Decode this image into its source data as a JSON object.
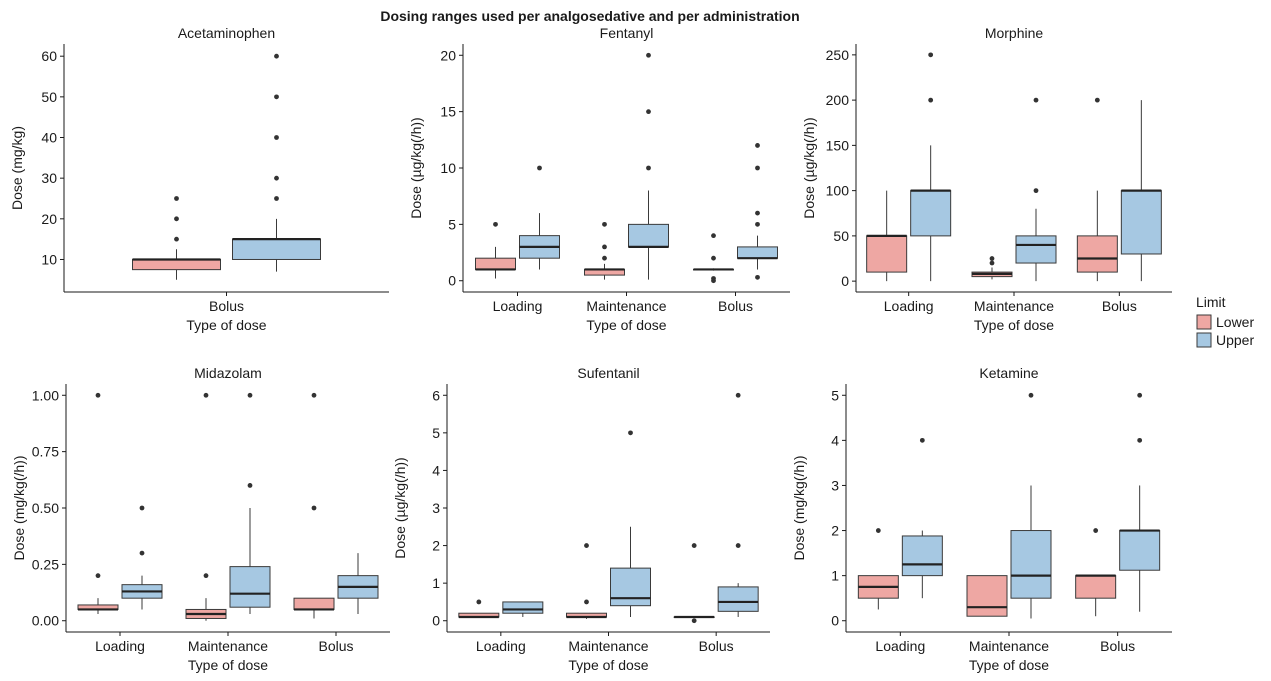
{
  "title": "Dosing ranges used per analgosedative and per administration",
  "legend": {
    "title": "Limit",
    "placement": "right",
    "items": [
      {
        "label": "Lower",
        "color": "#eea7a3"
      },
      {
        "label": "Upper",
        "color": "#a6c8e2"
      }
    ]
  },
  "colors": {
    "lower": "#eea7a3",
    "upper": "#a6c8e2",
    "outline": "#3a3a3a",
    "axis": "#1a1a1a"
  },
  "chart_data": [
    {
      "type": "box",
      "title": "Acetaminophen",
      "xlabel": "Type of dose",
      "ylabel": "Dose (mg/kg)",
      "categories": [
        "Bolus"
      ],
      "ylim": [
        2,
        63
      ],
      "yticks": [
        10,
        20,
        30,
        40,
        50,
        60
      ],
      "ytick_labels": [
        "10",
        "20",
        "30",
        "40",
        "50",
        "60"
      ],
      "series": [
        {
          "name": "Lower",
          "boxes": [
            {
              "lower_whisker": 5,
              "q1": 7.5,
              "median": 10,
              "q3": 10,
              "upper_whisker": 12.5,
              "outliers": [
                15,
                20,
                25
              ]
            }
          ]
        },
        {
          "name": "Upper",
          "boxes": [
            {
              "lower_whisker": 7,
              "q1": 10,
              "median": 15,
              "q3": 15,
              "upper_whisker": 20,
              "outliers": [
                25,
                30,
                40,
                50,
                60
              ]
            }
          ]
        }
      ]
    },
    {
      "type": "box",
      "title": "Fentanyl",
      "xlabel": "Type of dose",
      "ylabel": "Dose (µg/kg(/h))",
      "categories": [
        "Loading",
        "Maintenance",
        "Bolus"
      ],
      "ylim": [
        -1,
        21
      ],
      "yticks": [
        0,
        5,
        10,
        15,
        20
      ],
      "ytick_labels": [
        "0",
        "5",
        "10",
        "15",
        "20"
      ],
      "series": [
        {
          "name": "Lower",
          "boxes": [
            {
              "lower_whisker": 0.2,
              "q1": 1,
              "median": 1,
              "q3": 2,
              "upper_whisker": 3,
              "outliers": [
                5
              ]
            },
            {
              "lower_whisker": 0.1,
              "q1": 0.5,
              "median": 1,
              "q3": 1,
              "upper_whisker": 1.5,
              "outliers": [
                2,
                3,
                5
              ]
            },
            {
              "lower_whisker": 0.9,
              "q1": 1,
              "median": 1,
              "q3": 1,
              "upper_whisker": 1.1,
              "outliers": [
                0,
                0.2,
                2,
                4
              ]
            }
          ]
        },
        {
          "name": "Upper",
          "boxes": [
            {
              "lower_whisker": 1,
              "q1": 2,
              "median": 3,
              "q3": 4,
              "upper_whisker": 6,
              "outliers": [
                10
              ]
            },
            {
              "lower_whisker": 0.1,
              "q1": 3,
              "median": 3,
              "q3": 5,
              "upper_whisker": 8,
              "outliers": [
                10,
                15,
                20
              ]
            },
            {
              "lower_whisker": 1,
              "q1": 2,
              "median": 2,
              "q3": 3,
              "upper_whisker": 4,
              "outliers": [
                0.3,
                5,
                6,
                10,
                12
              ]
            }
          ]
        }
      ]
    },
    {
      "type": "box",
      "title": "Morphine",
      "xlabel": "Type of dose",
      "ylabel": "Dose (µg/kg(/h))",
      "categories": [
        "Loading",
        "Maintenance",
        "Bolus"
      ],
      "ylim": [
        -12,
        262
      ],
      "yticks": [
        0,
        50,
        100,
        150,
        200,
        250
      ],
      "ytick_labels": [
        "0",
        "50",
        "100",
        "150",
        "200",
        "250"
      ],
      "series": [
        {
          "name": "Lower",
          "boxes": [
            {
              "lower_whisker": 0,
              "q1": 10,
              "median": 50,
              "q3": 50,
              "upper_whisker": 100,
              "outliers": []
            },
            {
              "lower_whisker": 2,
              "q1": 5,
              "median": 8,
              "q3": 10,
              "upper_whisker": 15,
              "outliers": [
                20,
                25
              ]
            },
            {
              "lower_whisker": 0,
              "q1": 10,
              "median": 25,
              "q3": 50,
              "upper_whisker": 100,
              "outliers": [
                200
              ]
            }
          ]
        },
        {
          "name": "Upper",
          "boxes": [
            {
              "lower_whisker": 0,
              "q1": 50,
              "median": 100,
              "q3": 100,
              "upper_whisker": 150,
              "outliers": [
                200,
                250
              ]
            },
            {
              "lower_whisker": 0,
              "q1": 20,
              "median": 40,
              "q3": 50,
              "upper_whisker": 80,
              "outliers": [
                100,
                200
              ]
            },
            {
              "lower_whisker": 0,
              "q1": 30,
              "median": 100,
              "q3": 100,
              "upper_whisker": 200,
              "outliers": []
            }
          ]
        }
      ]
    },
    {
      "type": "box",
      "title": "Midazolam",
      "xlabel": "Type of dose",
      "ylabel": "Dose (mg/kg(/h))",
      "categories": [
        "Loading",
        "Maintenance",
        "Bolus"
      ],
      "ylim": [
        -0.05,
        1.05
      ],
      "yticks": [
        0,
        0.25,
        0.5,
        0.75,
        1
      ],
      "ytick_labels": [
        "0.00",
        "0.25",
        "0.50",
        "0.75",
        "1.00"
      ],
      "series": [
        {
          "name": "Lower",
          "boxes": [
            {
              "lower_whisker": 0.03,
              "q1": 0.05,
              "median": 0.05,
              "q3": 0.07,
              "upper_whisker": 0.1,
              "outliers": [
                0.2,
                1
              ]
            },
            {
              "lower_whisker": 0,
              "q1": 0.01,
              "median": 0.03,
              "q3": 0.05,
              "upper_whisker": 0.1,
              "outliers": [
                0.2,
                1
              ]
            },
            {
              "lower_whisker": 0.01,
              "q1": 0.05,
              "median": 0.05,
              "q3": 0.1,
              "upper_whisker": 0.1,
              "outliers": [
                0.5,
                1
              ]
            }
          ]
        },
        {
          "name": "Upper",
          "boxes": [
            {
              "lower_whisker": 0.05,
              "q1": 0.1,
              "median": 0.13,
              "q3": 0.16,
              "upper_whisker": 0.2,
              "outliers": [
                0.3,
                0.5
              ]
            },
            {
              "lower_whisker": 0.03,
              "q1": 0.06,
              "median": 0.12,
              "q3": 0.24,
              "upper_whisker": 0.5,
              "outliers": [
                0.6,
                1
              ]
            },
            {
              "lower_whisker": 0.03,
              "q1": 0.1,
              "median": 0.15,
              "q3": 0.2,
              "upper_whisker": 0.3,
              "outliers": []
            }
          ]
        }
      ]
    },
    {
      "type": "box",
      "title": "Sufentanil",
      "xlabel": "Type of dose",
      "ylabel": "Dose (µg/kg(/h))",
      "categories": [
        "Loading",
        "Maintenance",
        "Bolus"
      ],
      "ylim": [
        -0.3,
        6.3
      ],
      "yticks": [
        0,
        1,
        2,
        3,
        4,
        5,
        6
      ],
      "ytick_labels": [
        "0",
        "1",
        "2",
        "3",
        "4",
        "5",
        "6"
      ],
      "series": [
        {
          "name": "Lower",
          "boxes": [
            {
              "lower_whisker": 0.1,
              "q1": 0.1,
              "median": 0.1,
              "q3": 0.2,
              "upper_whisker": 0.2,
              "outliers": [
                0.5
              ]
            },
            {
              "lower_whisker": 0.05,
              "q1": 0.1,
              "median": 0.1,
              "q3": 0.2,
              "upper_whisker": 0.2,
              "outliers": [
                0.5,
                2
              ]
            },
            {
              "lower_whisker": 0.1,
              "q1": 0.1,
              "median": 0.1,
              "q3": 0.1,
              "upper_whisker": 0.1,
              "outliers": [
                0,
                2
              ]
            }
          ]
        },
        {
          "name": "Upper",
          "boxes": [
            {
              "lower_whisker": 0.1,
              "q1": 0.2,
              "median": 0.3,
              "q3": 0.5,
              "upper_whisker": 0.5,
              "outliers": []
            },
            {
              "lower_whisker": 0.1,
              "q1": 0.4,
              "median": 0.6,
              "q3": 1.4,
              "upper_whisker": 2.5,
              "outliers": [
                5
              ]
            },
            {
              "lower_whisker": 0.1,
              "q1": 0.25,
              "median": 0.5,
              "q3": 0.9,
              "upper_whisker": 1,
              "outliers": [
                2,
                6
              ]
            }
          ]
        }
      ]
    },
    {
      "type": "box",
      "title": "Ketamine",
      "xlabel": "Type of dose",
      "ylabel": "Dose (mg/kg(/h))",
      "categories": [
        "Loading",
        "Maintenance",
        "Bolus"
      ],
      "ylim": [
        -0.25,
        5.25
      ],
      "yticks": [
        0,
        1,
        2,
        3,
        4,
        5
      ],
      "ytick_labels": [
        "0",
        "1",
        "2",
        "3",
        "4",
        "5"
      ],
      "series": [
        {
          "name": "Lower",
          "boxes": [
            {
              "lower_whisker": 0.25,
              "q1": 0.5,
              "median": 0.75,
              "q3": 1,
              "upper_whisker": 1,
              "outliers": [
                2
              ]
            },
            {
              "lower_whisker": 0.1,
              "q1": 0.1,
              "median": 0.3,
              "q3": 1,
              "upper_whisker": 1,
              "outliers": []
            },
            {
              "lower_whisker": 0.1,
              "q1": 0.5,
              "median": 1,
              "q3": 1,
              "upper_whisker": 1,
              "outliers": [
                2
              ]
            }
          ]
        },
        {
          "name": "Upper",
          "boxes": [
            {
              "lower_whisker": 0.5,
              "q1": 1,
              "median": 1.25,
              "q3": 1.88,
              "upper_whisker": 2,
              "outliers": [
                4
              ]
            },
            {
              "lower_whisker": 0.05,
              "q1": 0.5,
              "median": 1,
              "q3": 2,
              "upper_whisker": 3,
              "outliers": [
                5
              ]
            },
            {
              "lower_whisker": 0.2,
              "q1": 1.12,
              "median": 2,
              "q3": 2,
              "upper_whisker": 3,
              "outliers": [
                4,
                5
              ]
            }
          ]
        }
      ]
    }
  ]
}
